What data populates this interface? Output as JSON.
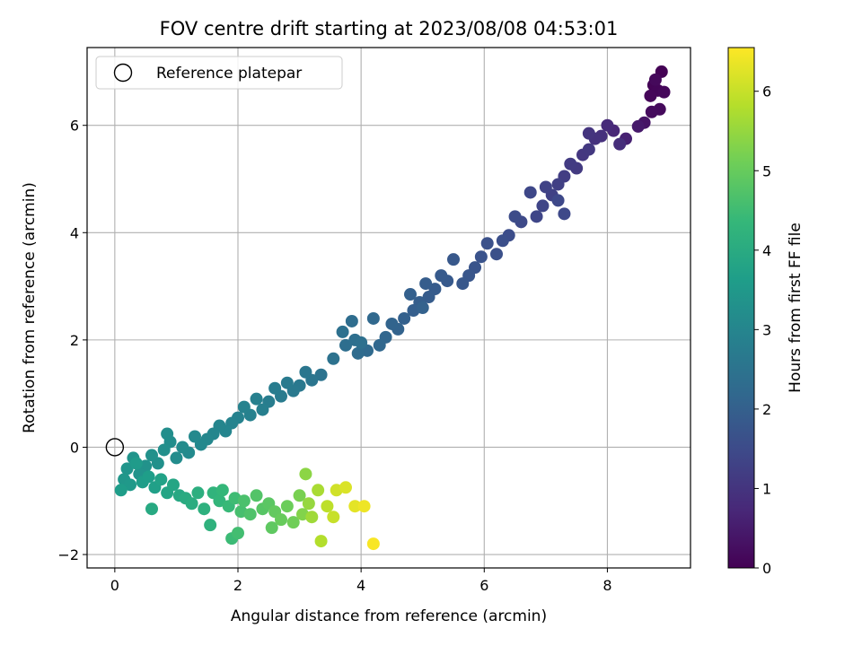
{
  "chart_data": {
    "type": "scatter",
    "title": "FOV centre drift starting at 2023/08/08 04:53:01",
    "xlabel": "Angular distance from reference (arcmin)",
    "ylabel": "Rotation from reference (arcmin)",
    "colorbar_label": "Hours from first FF file",
    "xlim": [
      -0.45,
      9.35
    ],
    "ylim": [
      -2.25,
      7.45
    ],
    "clim": [
      0,
      6.55
    ],
    "x_ticks": [
      "0",
      "2",
      "4",
      "6",
      "8"
    ],
    "x_tick_values": [
      0,
      2,
      4,
      6,
      8
    ],
    "y_ticks": [
      "−2",
      "0",
      "2",
      "4",
      "6"
    ],
    "y_tick_values": [
      -2,
      0,
      2,
      4,
      6
    ],
    "cbar_ticks": [
      "0",
      "1",
      "2",
      "3",
      "4",
      "5",
      "6"
    ],
    "cbar_tick_values": [
      0,
      1,
      2,
      3,
      4,
      5,
      6
    ],
    "grid": true,
    "colormap": "viridis",
    "legend": {
      "position": "top-left",
      "entries": [
        "Reference platepar"
      ]
    },
    "reference_point": {
      "x": 0,
      "y": 0
    },
    "series": [
      {
        "points": [
          [
            8.88,
            7.0,
            0.02
          ],
          [
            8.75,
            6.75,
            0.05
          ],
          [
            8.82,
            6.65,
            0.08
          ],
          [
            8.7,
            6.55,
            0.1
          ],
          [
            8.92,
            6.62,
            0.12
          ],
          [
            8.78,
            6.85,
            0.14
          ],
          [
            8.85,
            6.3,
            0.16
          ],
          [
            8.72,
            6.25,
            0.18
          ],
          [
            8.6,
            6.05,
            0.35
          ],
          [
            8.5,
            5.98,
            0.45
          ],
          [
            8.3,
            5.75,
            0.6
          ],
          [
            8.1,
            5.9,
            0.7
          ],
          [
            8.0,
            6.0,
            0.78
          ],
          [
            8.2,
            5.65,
            0.85
          ],
          [
            7.9,
            5.8,
            0.9
          ],
          [
            7.8,
            5.75,
            0.95
          ],
          [
            7.7,
            5.85,
            1.0
          ],
          [
            7.6,
            5.45,
            1.05
          ],
          [
            7.7,
            5.55,
            1.08
          ],
          [
            7.5,
            5.2,
            1.12
          ],
          [
            7.4,
            5.28,
            1.15
          ],
          [
            7.3,
            5.05,
            1.2
          ],
          [
            7.2,
            4.9,
            1.25
          ],
          [
            7.1,
            4.7,
            1.28
          ],
          [
            7.0,
            4.85,
            1.32
          ],
          [
            6.95,
            4.5,
            1.36
          ],
          [
            6.85,
            4.3,
            1.4
          ],
          [
            6.75,
            4.75,
            1.42
          ],
          [
            7.2,
            4.6,
            1.44
          ],
          [
            7.3,
            4.35,
            1.46
          ],
          [
            6.6,
            4.2,
            1.48
          ],
          [
            6.5,
            4.3,
            1.52
          ],
          [
            6.4,
            3.95,
            1.55
          ],
          [
            6.3,
            3.85,
            1.6
          ],
          [
            6.2,
            3.6,
            1.62
          ],
          [
            6.05,
            3.8,
            1.65
          ],
          [
            5.95,
            3.55,
            1.68
          ],
          [
            5.85,
            3.35,
            1.72
          ],
          [
            5.75,
            3.2,
            1.75
          ],
          [
            5.65,
            3.05,
            1.78
          ],
          [
            5.5,
            3.5,
            1.8
          ],
          [
            5.4,
            3.1,
            1.82
          ],
          [
            5.3,
            3.2,
            1.85
          ],
          [
            5.2,
            2.95,
            1.88
          ],
          [
            5.1,
            2.8,
            1.9
          ],
          [
            5.05,
            3.05,
            1.92
          ],
          [
            4.95,
            2.7,
            1.95
          ],
          [
            4.85,
            2.55,
            1.98
          ],
          [
            4.8,
            2.85,
            2.0
          ],
          [
            4.7,
            2.4,
            2.02
          ],
          [
            5.0,
            2.6,
            2.04
          ],
          [
            4.6,
            2.2,
            2.06
          ],
          [
            4.5,
            2.3,
            2.1
          ],
          [
            4.4,
            2.05,
            2.15
          ],
          [
            4.3,
            1.9,
            2.18
          ],
          [
            4.2,
            2.4,
            2.2
          ],
          [
            4.1,
            1.8,
            2.25
          ],
          [
            3.95,
            1.75,
            2.3
          ],
          [
            3.85,
            2.35,
            2.32
          ],
          [
            3.75,
            1.9,
            2.35
          ],
          [
            3.9,
            2.0,
            2.38
          ],
          [
            4.0,
            1.95,
            2.4
          ],
          [
            3.7,
            2.15,
            2.42
          ],
          [
            3.55,
            1.65,
            2.45
          ],
          [
            3.35,
            1.35,
            2.5
          ],
          [
            3.2,
            1.25,
            2.55
          ],
          [
            3.1,
            1.4,
            2.58
          ],
          [
            3.0,
            1.15,
            2.62
          ],
          [
            2.9,
            1.05,
            2.65
          ],
          [
            2.8,
            1.2,
            2.68
          ],
          [
            2.7,
            0.95,
            2.72
          ],
          [
            2.6,
            1.1,
            2.75
          ],
          [
            2.5,
            0.85,
            2.78
          ],
          [
            2.4,
            0.7,
            2.82
          ],
          [
            2.3,
            0.9,
            2.85
          ],
          [
            2.2,
            0.6,
            2.88
          ],
          [
            2.1,
            0.75,
            2.9
          ],
          [
            2.0,
            0.55,
            2.92
          ],
          [
            1.9,
            0.45,
            2.95
          ],
          [
            1.8,
            0.3,
            2.98
          ],
          [
            1.7,
            0.4,
            3.0
          ],
          [
            1.6,
            0.25,
            3.02
          ],
          [
            1.5,
            0.15,
            3.05
          ],
          [
            1.4,
            0.05,
            3.08
          ],
          [
            1.3,
            0.2,
            3.1
          ],
          [
            1.2,
            -0.1,
            3.12
          ],
          [
            1.1,
            0.0,
            3.15
          ],
          [
            1.0,
            -0.2,
            3.18
          ],
          [
            0.9,
            0.1,
            3.2
          ],
          [
            0.85,
            0.25,
            3.22
          ],
          [
            0.8,
            -0.05,
            3.25
          ],
          [
            0.7,
            -0.3,
            3.28
          ],
          [
            0.6,
            -0.15,
            3.3
          ],
          [
            0.5,
            -0.35,
            3.32
          ],
          [
            0.4,
            -0.5,
            3.35
          ],
          [
            0.3,
            -0.2,
            3.38
          ],
          [
            0.2,
            -0.4,
            3.4
          ],
          [
            0.15,
            -0.6,
            3.45
          ],
          [
            0.25,
            -0.7,
            3.5
          ],
          [
            0.35,
            -0.3,
            3.55
          ],
          [
            0.1,
            -0.8,
            3.6
          ],
          [
            0.45,
            -0.65,
            3.62
          ],
          [
            0.55,
            -0.55,
            3.65
          ],
          [
            0.65,
            -0.75,
            3.7
          ],
          [
            0.75,
            -0.6,
            3.75
          ],
          [
            0.85,
            -0.85,
            3.8
          ],
          [
            0.95,
            -0.7,
            3.85
          ],
          [
            1.05,
            -0.9,
            3.9
          ],
          [
            0.6,
            -1.15,
            3.95
          ],
          [
            1.15,
            -0.95,
            4.0
          ],
          [
            1.25,
            -1.05,
            4.05
          ],
          [
            1.35,
            -0.85,
            4.1
          ],
          [
            1.45,
            -1.15,
            4.15
          ],
          [
            1.55,
            -1.45,
            4.2
          ],
          [
            1.6,
            -0.85,
            4.25
          ],
          [
            1.7,
            -1.0,
            4.3
          ],
          [
            1.75,
            -0.8,
            4.35
          ],
          [
            1.85,
            -1.1,
            4.4
          ],
          [
            1.9,
            -1.7,
            4.45
          ],
          [
            1.95,
            -0.95,
            4.5
          ],
          [
            2.0,
            -1.6,
            4.55
          ],
          [
            2.05,
            -1.2,
            4.6
          ],
          [
            2.1,
            -1.0,
            4.65
          ],
          [
            2.2,
            -1.25,
            4.7
          ],
          [
            2.3,
            -0.9,
            4.75
          ],
          [
            2.4,
            -1.15,
            4.8
          ],
          [
            2.5,
            -1.05,
            4.85
          ],
          [
            2.55,
            -1.5,
            4.9
          ],
          [
            2.6,
            -1.2,
            4.95
          ],
          [
            2.7,
            -1.35,
            5.0
          ],
          [
            2.8,
            -1.1,
            5.05
          ],
          [
            2.9,
            -1.4,
            5.1
          ],
          [
            3.0,
            -0.9,
            5.2
          ],
          [
            3.05,
            -1.25,
            5.3
          ],
          [
            3.1,
            -0.5,
            5.4
          ],
          [
            3.15,
            -1.05,
            5.5
          ],
          [
            3.2,
            -1.3,
            5.6
          ],
          [
            3.3,
            -0.8,
            5.7
          ],
          [
            3.35,
            -1.75,
            5.8
          ],
          [
            3.45,
            -1.1,
            5.9
          ],
          [
            3.55,
            -1.3,
            6.0
          ],
          [
            3.6,
            -0.8,
            6.1
          ],
          [
            3.75,
            -0.75,
            6.2
          ],
          [
            3.9,
            -1.1,
            6.3
          ],
          [
            4.05,
            -1.1,
            6.4
          ],
          [
            4.2,
            -1.8,
            6.5
          ]
        ]
      }
    ]
  }
}
